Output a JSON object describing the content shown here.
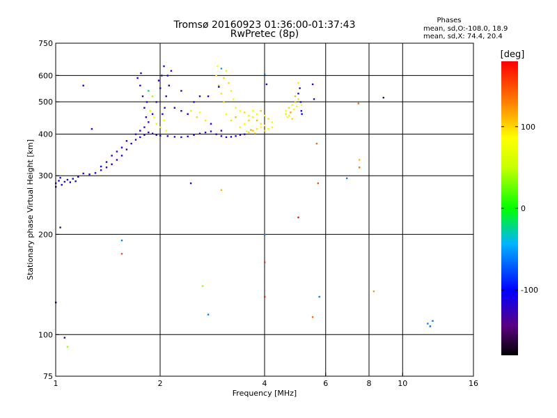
{
  "title_line1": "Tromsø 20160923 01:36:00-01:37:43",
  "title_line2": "RwPretec (8p)",
  "phases": {
    "heading": "Phases",
    "line_o": "mean, sd,O:-108.0, 18.9",
    "line_x": "mean, sd,X:  74.4, 20.4"
  },
  "colorbar": {
    "unit": "[deg]",
    "ticks": [
      {
        "value": 100,
        "label": "100"
      },
      {
        "value": 0,
        "label": "0"
      },
      {
        "value": -100,
        "label": "-100"
      }
    ],
    "range": [
      -180,
      180
    ]
  },
  "chart_data": {
    "type": "scatter",
    "xlabel": "Frequency [MHz]",
    "ylabel": "Stationary phase Virtual Height [km]",
    "xscale": "log",
    "yscale": "log",
    "xlim": [
      1,
      16
    ],
    "ylim": [
      75,
      750
    ],
    "xticks": [
      {
        "value": 1,
        "label": "1"
      },
      {
        "value": 2,
        "label": "2"
      },
      {
        "value": 4,
        "label": "4"
      },
      {
        "value": 6,
        "label": "6"
      },
      {
        "value": 8,
        "label": "8"
      },
      {
        "value": 10,
        "label": "10"
      },
      {
        "value": 16,
        "label": "16"
      }
    ],
    "yticks": [
      {
        "value": 75,
        "label": "75"
      },
      {
        "value": 100,
        "label": "100"
      },
      {
        "value": 200,
        "label": "200"
      },
      {
        "value": 300,
        "label": "300"
      },
      {
        "value": 400,
        "label": "400"
      },
      {
        "value": 500,
        "label": "500"
      },
      {
        "value": 600,
        "label": "600"
      },
      {
        "value": 750,
        "label": "750"
      }
    ],
    "vgrid": [
      2,
      4,
      6,
      8,
      10
    ],
    "hgrid": [
      100,
      200,
      300,
      400,
      500,
      600
    ],
    "point_columns": [
      "freq_MHz",
      "height_km",
      "phase_deg"
    ],
    "points": [
      [
        1.0,
        285,
        -115
      ],
      [
        1.02,
        290,
        -110
      ],
      [
        1.04,
        282,
        -105
      ],
      [
        1.06,
        288,
        -120
      ],
      [
        1.08,
        292,
        -112
      ],
      [
        1.1,
        287,
        -108
      ],
      [
        1.12,
        294,
        -100
      ],
      [
        1.14,
        289,
        -118
      ],
      [
        1.0,
        278,
        -125
      ],
      [
        1.03,
        296,
        -98
      ],
      [
        1.16,
        298,
        -110
      ],
      [
        1.2,
        305,
        -115
      ],
      [
        1.25,
        303,
        -105
      ],
      [
        1.3,
        306,
        -112
      ],
      [
        1.35,
        312,
        -120
      ],
      [
        1.4,
        318,
        -108
      ],
      [
        1.45,
        325,
        -115
      ],
      [
        1.5,
        335,
        -122
      ],
      [
        1.55,
        345,
        -110
      ],
      [
        1.6,
        360,
        -118
      ],
      [
        1.65,
        375,
        -112
      ],
      [
        1.7,
        385,
        -125
      ],
      [
        1.75,
        392,
        -105
      ],
      [
        1.8,
        398,
        -115
      ],
      [
        1.5,
        355,
        -130
      ],
      [
        1.55,
        365,
        -108
      ],
      [
        1.6,
        382,
        -120
      ],
      [
        1.45,
        345,
        -112
      ],
      [
        1.4,
        330,
        -118
      ],
      [
        1.35,
        320,
        -100
      ],
      [
        1.7,
        400,
        -128
      ],
      [
        1.75,
        410,
        -115
      ],
      [
        1.8,
        420,
        -110
      ],
      [
        1.85,
        435,
        -120
      ],
      [
        1.9,
        460,
        -112
      ],
      [
        1.95,
        500,
        -118
      ],
      [
        2.0,
        550,
        -122
      ],
      [
        2.02,
        600,
        -115
      ],
      [
        2.05,
        640,
        -125
      ],
      [
        1.98,
        580,
        -110
      ],
      [
        1.85,
        405,
        -118
      ],
      [
        1.9,
        402,
        -112
      ],
      [
        1.95,
        398,
        -120
      ],
      [
        2.0,
        396,
        -115
      ],
      [
        2.1,
        395,
        -110
      ],
      [
        2.2,
        393,
        -118
      ],
      [
        2.3,
        392,
        -120
      ],
      [
        2.4,
        394,
        -115
      ],
      [
        2.5,
        398,
        -112
      ],
      [
        2.6,
        402,
        -118
      ],
      [
        2.7,
        405,
        -110
      ],
      [
        2.8,
        408,
        -115
      ],
      [
        2.9,
        400,
        -120
      ],
      [
        3.0,
        395,
        -118
      ],
      [
        3.1,
        392,
        -112
      ],
      [
        3.2,
        393,
        -115
      ],
      [
        3.3,
        395,
        -110
      ],
      [
        3.4,
        398,
        -118
      ],
      [
        3.5,
        400,
        -120
      ],
      [
        3.0,
        410,
        -125
      ],
      [
        1.75,
        560,
        -112
      ],
      [
        1.78,
        520,
        -118
      ],
      [
        1.8,
        480,
        -110
      ],
      [
        1.82,
        450,
        -120
      ],
      [
        1.83,
        500,
        -115
      ],
      [
        1.76,
        610,
        -122
      ],
      [
        1.72,
        590,
        -105
      ],
      [
        1.85,
        540,
        -20
      ],
      [
        1.87,
        470,
        60
      ],
      [
        1.9,
        520,
        40
      ],
      [
        1.92,
        450,
        80
      ],
      [
        1.95,
        430,
        70
      ],
      [
        2.0,
        420,
        90
      ],
      [
        2.05,
        440,
        85
      ],
      [
        2.08,
        410,
        75
      ],
      [
        2.1,
        600,
        -110
      ],
      [
        2.12,
        560,
        -118
      ],
      [
        2.08,
        520,
        -115
      ],
      [
        2.06,
        480,
        -120
      ],
      [
        2.03,
        460,
        -112
      ],
      [
        2.2,
        480,
        -110
      ],
      [
        2.3,
        470,
        -118
      ],
      [
        2.4,
        460,
        -112
      ],
      [
        2.45,
        470,
        60
      ],
      [
        2.55,
        450,
        100
      ],
      [
        2.6,
        465,
        80
      ],
      [
        2.7,
        440,
        95
      ],
      [
        2.8,
        430,
        -110
      ],
      [
        2.6,
        520,
        -115
      ],
      [
        2.5,
        500,
        -118
      ],
      [
        2.9,
        600,
        90
      ],
      [
        2.95,
        560,
        110
      ],
      [
        3.0,
        530,
        95
      ],
      [
        3.05,
        500,
        105
      ],
      [
        3.1,
        620,
        70
      ],
      [
        3.15,
        570,
        100
      ],
      [
        3.2,
        540,
        90
      ],
      [
        3.25,
        510,
        80
      ],
      [
        2.92,
        640,
        85
      ],
      [
        3.05,
        590,
        100
      ],
      [
        3.1,
        460,
        80
      ],
      [
        3.2,
        440,
        95
      ],
      [
        3.3,
        450,
        110
      ],
      [
        3.4,
        420,
        90
      ],
      [
        3.5,
        430,
        85
      ],
      [
        3.6,
        440,
        100
      ],
      [
        3.7,
        450,
        95
      ],
      [
        3.8,
        460,
        80
      ],
      [
        3.9,
        470,
        105
      ],
      [
        4.0,
        455,
        90
      ],
      [
        3.6,
        405,
        100
      ],
      [
        3.7,
        410,
        110
      ],
      [
        3.8,
        415,
        95
      ],
      [
        3.9,
        420,
        85
      ],
      [
        4.0,
        410,
        100
      ],
      [
        4.1,
        415,
        90
      ],
      [
        4.2,
        420,
        80
      ],
      [
        3.55,
        408,
        75
      ],
      [
        3.65,
        412,
        120
      ],
      [
        3.75,
        403,
        95
      ],
      [
        3.3,
        480,
        70
      ],
      [
        3.4,
        470,
        85
      ],
      [
        3.5,
        465,
        100
      ],
      [
        3.6,
        455,
        90
      ],
      [
        3.7,
        470,
        80
      ],
      [
        3.8,
        440,
        110
      ],
      [
        3.9,
        430,
        95
      ],
      [
        4.0,
        425,
        85
      ],
      [
        4.1,
        445,
        100
      ],
      [
        4.2,
        435,
        90
      ],
      [
        4.6,
        470,
        80
      ],
      [
        4.7,
        480,
        100
      ],
      [
        4.8,
        490,
        90
      ],
      [
        4.9,
        500,
        110
      ],
      [
        5.0,
        510,
        95
      ],
      [
        5.1,
        490,
        85
      ],
      [
        5.0,
        530,
        -110
      ],
      [
        5.05,
        550,
        -115
      ],
      [
        5.1,
        470,
        -118
      ],
      [
        5.08,
        500,
        -112
      ],
      [
        4.6,
        460,
        60
      ],
      [
        4.7,
        455,
        70
      ],
      [
        4.8,
        445,
        100
      ],
      [
        5.0,
        570,
        95
      ],
      [
        4.85,
        475,
        85
      ],
      [
        4.75,
        465,
        120
      ],
      [
        4.9,
        520,
        110
      ],
      [
        4.65,
        450,
        90
      ],
      [
        4.95,
        485,
        75
      ],
      [
        5.12,
        460,
        -100
      ],
      [
        1.2,
        560,
        -118
      ],
      [
        1.27,
        415,
        -115
      ],
      [
        2.15,
        620,
        -118
      ],
      [
        2.3,
        540,
        -112
      ],
      [
        2.45,
        285,
        -120
      ],
      [
        2.75,
        520,
        -110
      ],
      [
        2.95,
        555,
        -105
      ],
      [
        3.0,
        630,
        -50
      ],
      [
        4.0,
        605,
        -60
      ],
      [
        4.05,
        565,
        -115
      ],
      [
        4.0,
        200,
        -60
      ],
      [
        4.0,
        165,
        160
      ],
      [
        4.0,
        130,
        170
      ],
      [
        5.5,
        565,
        -120
      ],
      [
        5.55,
        510,
        -118
      ],
      [
        5.65,
        375,
        140
      ],
      [
        5.7,
        285,
        150
      ],
      [
        5.75,
        130,
        -60
      ],
      [
        5.5,
        113,
        140
      ],
      [
        5.0,
        225,
        175
      ],
      [
        1.55,
        192,
        -60
      ],
      [
        1.55,
        175,
        150
      ],
      [
        2.65,
        140,
        40
      ],
      [
        2.75,
        115,
        -60
      ],
      [
        3.0,
        272,
        110
      ],
      [
        7.45,
        495,
        140
      ],
      [
        7.5,
        335,
        110
      ],
      [
        7.5,
        318,
        140
      ],
      [
        8.25,
        135,
        120
      ],
      [
        8.8,
        515,
        -120
      ],
      [
        6.9,
        295,
        -60
      ],
      [
        11.8,
        108,
        -60
      ],
      [
        12.0,
        106,
        -70
      ],
      [
        12.2,
        110,
        -65
      ],
      [
        1.03,
        210,
        -120
      ],
      [
        1.0,
        125,
        -115
      ],
      [
        1.06,
        98,
        -110
      ],
      [
        1.08,
        92,
        40
      ]
    ]
  }
}
